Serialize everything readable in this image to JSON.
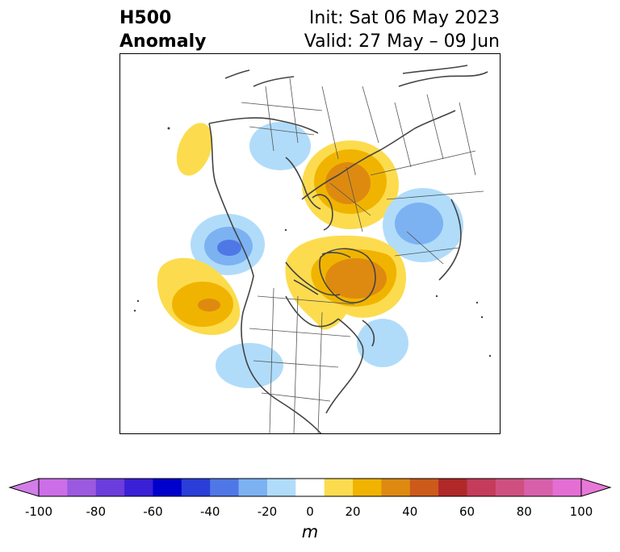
{
  "header": {
    "title_line1": "H500",
    "title_line2": "Anomaly",
    "init_text": "Init: Sat 06 May 2023",
    "valid_text": "Valid: 27 May – 09 Jun"
  },
  "map": {
    "projection": "polar-stereographic-north",
    "field": "500 hPa geopotential height anomaly",
    "features": [
      {
        "name": "anomaly-positive-alaska-coast",
        "sign": "positive",
        "max_m": 20
      },
      {
        "name": "anomaly-negative-northern-asia",
        "sign": "negative",
        "min_m": -20
      },
      {
        "name": "anomaly-positive-scandinavia-russia",
        "sign": "positive",
        "max_m": 40
      },
      {
        "name": "anomaly-negative-east-asia",
        "sign": "negative",
        "min_m": -40
      },
      {
        "name": "anomaly-negative-aleutians",
        "sign": "negative",
        "min_m": -50
      },
      {
        "name": "anomaly-positive-arctic-greenland",
        "sign": "positive",
        "max_m": 40
      },
      {
        "name": "anomaly-positive-northeast-pacific",
        "sign": "positive",
        "max_m": 40
      },
      {
        "name": "anomaly-negative-north-atlantic",
        "sign": "negative",
        "min_m": -20
      },
      {
        "name": "anomaly-negative-western-us",
        "sign": "negative",
        "min_m": -20
      }
    ]
  },
  "colorbar": {
    "unit": "m",
    "bounds": [
      -100,
      -90,
      -80,
      -70,
      -60,
      -50,
      -40,
      -30,
      -20,
      -10,
      10,
      20,
      30,
      40,
      50,
      60,
      70,
      80,
      90,
      100
    ],
    "colors": [
      "#cc6ee8",
      "#9b59e0",
      "#6b3ddc",
      "#3a20d6",
      "#0000cc",
      "#2a3ed8",
      "#4f78e6",
      "#7cb2f2",
      "#b0dcfa",
      "#ffffff",
      "#fcdc4e",
      "#f0b400",
      "#de8a10",
      "#cc5a1a",
      "#b02828",
      "#c43c5a",
      "#cf5080",
      "#d860aa",
      "#e46ed4"
    ],
    "under_color": "#d27ee8",
    "over_color": "#e878d8",
    "ticks": [
      "-100",
      "-80",
      "-60",
      "-40",
      "-20",
      "0",
      "20",
      "40",
      "60",
      "80",
      "100"
    ]
  }
}
